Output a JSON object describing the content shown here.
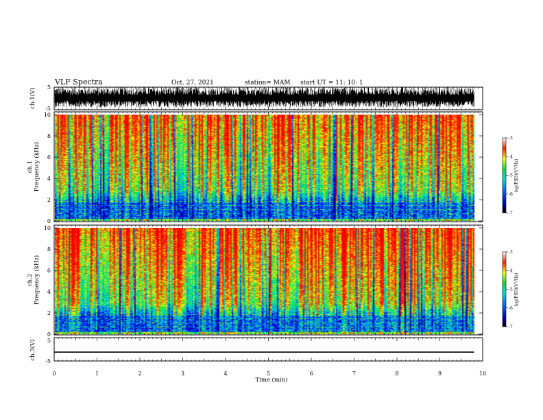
{
  "header": {
    "title": "VLF Spectra",
    "date": "Oct. 27, 2021",
    "station": "station= MAM",
    "start": "start  UT  =   11: 10: 1"
  },
  "chart_data": [
    {
      "type": "line",
      "name": "ch1-waveform",
      "ylabel": "ch.1(V)",
      "ylim": [
        -5,
        5
      ],
      "yticks": [
        "5",
        "-5"
      ],
      "xlim": [
        0,
        10
      ],
      "description_values": "dense noise waveform spanning roughly -4 to 5 V"
    },
    {
      "type": "heatmap",
      "name": "ch1-spectrogram",
      "ylabel_ch": "ch.1",
      "ylabel": "Frequency (kHz)",
      "ylim": [
        0,
        10
      ],
      "yticks": [
        "0",
        "2",
        "4",
        "6",
        "8",
        "10"
      ],
      "xlim": [
        0,
        9.8
      ],
      "colorbar": {
        "label": "log(PSD)(V²/Hz)",
        "range": [
          -7,
          -3
        ],
        "ticks": [
          "-3",
          "-4",
          "-5",
          "-6",
          "-7"
        ]
      }
    },
    {
      "type": "heatmap",
      "name": "ch2-spectrogram",
      "ylabel_ch": "ch.2",
      "ylabel": "Frequency (kHz)",
      "ylim": [
        0,
        10
      ],
      "yticks": [
        "0",
        "2",
        "4",
        "6",
        "8",
        "10"
      ],
      "xlim": [
        0,
        9.8
      ],
      "colorbar": {
        "label": "log(PSD)(V²/Hz)",
        "range": [
          -7,
          -3
        ],
        "ticks": [
          "-3",
          "-4",
          "-5",
          "-6",
          "-7"
        ]
      }
    },
    {
      "type": "line",
      "name": "ch3-waveform",
      "ylabel": "ch.3(V)",
      "ylim": [
        -5,
        5
      ],
      "yticks": [
        "5",
        "-5"
      ],
      "x": [
        0,
        9.8
      ],
      "y": [
        -1.2,
        -1.2
      ]
    }
  ],
  "xaxis": {
    "label": "Time  (min)",
    "ticks": [
      "0",
      "1",
      "2",
      "3",
      "4",
      "5",
      "6",
      "7",
      "8",
      "9",
      "10"
    ],
    "range": [
      0,
      10
    ]
  },
  "colors": {
    "low": "#0000c8",
    "mid_low": "#00c8ff",
    "mid": "#00e050",
    "mid_high": "#ffff00",
    "high": "#ff2000"
  }
}
